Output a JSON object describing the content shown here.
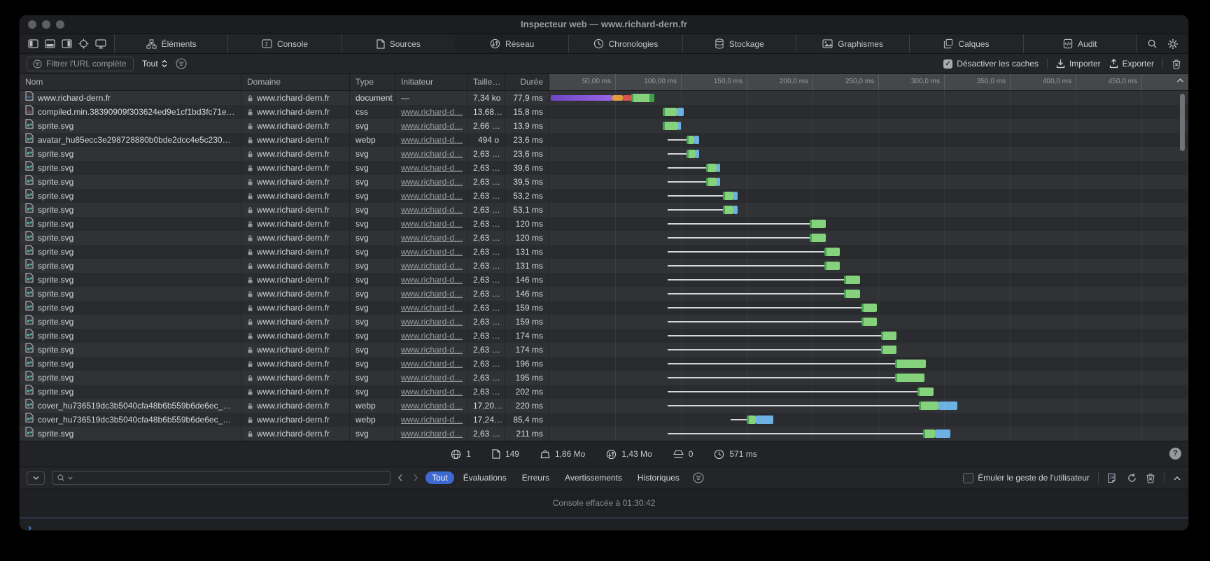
{
  "window": {
    "title": "Inspecteur web — www.richard-dern.fr"
  },
  "tabs": [
    {
      "id": "tab-elements",
      "icon": "elements-icon",
      "label": "Éléments",
      "active": false
    },
    {
      "id": "tab-console",
      "icon": "console-icon",
      "label": "Console",
      "active": false
    },
    {
      "id": "tab-sources",
      "icon": "sources-icon",
      "label": "Sources",
      "active": false
    },
    {
      "id": "tab-network",
      "icon": "network-icon",
      "label": "Réseau",
      "active": true
    },
    {
      "id": "tab-timelines",
      "icon": "timelines-icon",
      "label": "Chronologies",
      "active": false
    },
    {
      "id": "tab-storage",
      "icon": "storage-icon",
      "label": "Stockage",
      "active": false
    },
    {
      "id": "tab-graphics",
      "icon": "graphics-icon",
      "label": "Graphismes",
      "active": false
    },
    {
      "id": "tab-layers",
      "icon": "layers-icon",
      "label": "Calques",
      "active": false
    },
    {
      "id": "tab-audit",
      "icon": "audit-icon",
      "label": "Audit",
      "active": false
    }
  ],
  "network_toolbar": {
    "filter_placeholder": "Filtrer l'URL complète",
    "scope_label": "Tout",
    "disable_caches_label": "Désactiver les caches",
    "import_label": "Importer",
    "export_label": "Exporter"
  },
  "columns": {
    "nom": "Nom",
    "domaine": "Domaine",
    "type": "Type",
    "initiateur": "Initiateur",
    "taille": "Taille…",
    "duree": "Durée"
  },
  "timeline": {
    "ticks": [
      "50,00 ms",
      "100,00 ms",
      "150,0 ms",
      "200,0 ms",
      "250,0 ms",
      "300,0 ms",
      "350,0 ms",
      "400,0 ms",
      "450,0 ms"
    ],
    "tick_interval_ms": 50,
    "axis_unit": "ms"
  },
  "rows": [
    {
      "name": "www.richard-dern.fr",
      "icon": "html-file-icon",
      "domain": "www.richard-dern.fr",
      "type": "document",
      "initiator": "—",
      "initiator_link": false,
      "size": "7,34 ko",
      "duration": "77,9 ms",
      "wf": [
        {
          "c": "purple",
          "s": 1,
          "e": 48
        },
        {
          "c": "orange",
          "s": 48,
          "e": 56
        },
        {
          "c": "red",
          "s": 56,
          "e": 62
        },
        {
          "c": "green",
          "s": 62,
          "e": 80
        },
        {
          "c": "darkgreen",
          "s": 76,
          "e": 80
        }
      ]
    },
    {
      "name": "compiled.min.38390909f303624ed9e1cf1bd3fc71e…",
      "icon": "css-file-icon",
      "domain": "www.richard-dern.fr",
      "type": "css",
      "initiator": "www.richard-d…",
      "initiator_link": true,
      "size": "13,68…",
      "duration": "15,8 ms",
      "wf": [
        {
          "c": "green",
          "s": 86,
          "e": 97
        },
        {
          "c": "blue",
          "s": 97,
          "e": 102
        }
      ]
    },
    {
      "name": "sprite.svg",
      "icon": "svg-file-icon",
      "domain": "www.richard-dern.fr",
      "type": "svg",
      "initiator": "www.richard-d…",
      "initiator_link": true,
      "size": "2,66 …",
      "duration": "13,9 ms",
      "wf": [
        {
          "c": "green",
          "s": 86,
          "e": 98
        },
        {
          "c": "blue",
          "s": 98,
          "e": 100
        }
      ]
    },
    {
      "name": "avatar_hu85ecc3e298728880b0bde2dcc4e5c230_…",
      "icon": "image-file-icon",
      "domain": "www.richard-dern.fr",
      "type": "webp",
      "initiator": "www.richard-d…",
      "initiator_link": true,
      "size": "494 o",
      "duration": "23,6 ms",
      "wf": [
        {
          "c": "line",
          "s": 90,
          "e": 104
        },
        {
          "c": "green",
          "s": 104,
          "e": 110
        },
        {
          "c": "blue",
          "s": 110,
          "e": 114
        }
      ]
    },
    {
      "name": "sprite.svg",
      "icon": "svg-file-icon",
      "domain": "www.richard-dern.fr",
      "type": "svg",
      "initiator": "www.richard-d…",
      "initiator_link": true,
      "size": "2,63 …",
      "duration": "23,6 ms",
      "wf": [
        {
          "c": "line",
          "s": 90,
          "e": 104
        },
        {
          "c": "green",
          "s": 104,
          "e": 111
        },
        {
          "c": "blue",
          "s": 111,
          "e": 114
        }
      ]
    },
    {
      "name": "sprite.svg",
      "icon": "svg-file-icon",
      "domain": "www.richard-dern.fr",
      "type": "svg",
      "initiator": "www.richard-d…",
      "initiator_link": true,
      "size": "2,63 …",
      "duration": "39,6 ms",
      "wf": [
        {
          "c": "line",
          "s": 90,
          "e": 119
        },
        {
          "c": "green",
          "s": 119,
          "e": 127
        },
        {
          "c": "blue",
          "s": 127,
          "e": 130
        }
      ]
    },
    {
      "name": "sprite.svg",
      "icon": "svg-file-icon",
      "domain": "www.richard-dern.fr",
      "type": "svg",
      "initiator": "www.richard-d…",
      "initiator_link": true,
      "size": "2,63 …",
      "duration": "39,5 ms",
      "wf": [
        {
          "c": "line",
          "s": 90,
          "e": 119
        },
        {
          "c": "green",
          "s": 119,
          "e": 127
        },
        {
          "c": "blue",
          "s": 127,
          "e": 130
        }
      ]
    },
    {
      "name": "sprite.svg",
      "icon": "svg-file-icon",
      "domain": "www.richard-dern.fr",
      "type": "svg",
      "initiator": "www.richard-d…",
      "initiator_link": true,
      "size": "2,63 …",
      "duration": "53,2 ms",
      "wf": [
        {
          "c": "line",
          "s": 90,
          "e": 132
        },
        {
          "c": "green",
          "s": 132,
          "e": 140
        },
        {
          "c": "blue",
          "s": 140,
          "e": 143
        }
      ]
    },
    {
      "name": "sprite.svg",
      "icon": "svg-file-icon",
      "domain": "www.richard-dern.fr",
      "type": "svg",
      "initiator": "www.richard-d…",
      "initiator_link": true,
      "size": "2,63 …",
      "duration": "53,1 ms",
      "wf": [
        {
          "c": "line",
          "s": 90,
          "e": 132
        },
        {
          "c": "green",
          "s": 132,
          "e": 140
        },
        {
          "c": "blue",
          "s": 140,
          "e": 143
        }
      ]
    },
    {
      "name": "sprite.svg",
      "icon": "svg-file-icon",
      "domain": "www.richard-dern.fr",
      "type": "svg",
      "initiator": "www.richard-d…",
      "initiator_link": true,
      "size": "2,63 …",
      "duration": "120 ms",
      "wf": [
        {
          "c": "line",
          "s": 90,
          "e": 198
        },
        {
          "c": "green",
          "s": 198,
          "e": 210
        }
      ]
    },
    {
      "name": "sprite.svg",
      "icon": "svg-file-icon",
      "domain": "www.richard-dern.fr",
      "type": "svg",
      "initiator": "www.richard-d…",
      "initiator_link": true,
      "size": "2,63 …",
      "duration": "120 ms",
      "wf": [
        {
          "c": "line",
          "s": 90,
          "e": 198
        },
        {
          "c": "green",
          "s": 198,
          "e": 210
        }
      ]
    },
    {
      "name": "sprite.svg",
      "icon": "svg-file-icon",
      "domain": "www.richard-dern.fr",
      "type": "svg",
      "initiator": "www.richard-d…",
      "initiator_link": true,
      "size": "2,63 …",
      "duration": "131 ms",
      "wf": [
        {
          "c": "line",
          "s": 90,
          "e": 209
        },
        {
          "c": "green",
          "s": 209,
          "e": 221
        }
      ]
    },
    {
      "name": "sprite.svg",
      "icon": "svg-file-icon",
      "domain": "www.richard-dern.fr",
      "type": "svg",
      "initiator": "www.richard-d…",
      "initiator_link": true,
      "size": "2,63 …",
      "duration": "131 ms",
      "wf": [
        {
          "c": "line",
          "s": 90,
          "e": 209
        },
        {
          "c": "green",
          "s": 209,
          "e": 221
        }
      ]
    },
    {
      "name": "sprite.svg",
      "icon": "svg-file-icon",
      "domain": "www.richard-dern.fr",
      "type": "svg",
      "initiator": "www.richard-d…",
      "initiator_link": true,
      "size": "2,63 …",
      "duration": "146 ms",
      "wf": [
        {
          "c": "line",
          "s": 90,
          "e": 224
        },
        {
          "c": "green",
          "s": 224,
          "e": 236
        }
      ]
    },
    {
      "name": "sprite.svg",
      "icon": "svg-file-icon",
      "domain": "www.richard-dern.fr",
      "type": "svg",
      "initiator": "www.richard-d…",
      "initiator_link": true,
      "size": "2,63 …",
      "duration": "146 ms",
      "wf": [
        {
          "c": "line",
          "s": 90,
          "e": 224
        },
        {
          "c": "green",
          "s": 224,
          "e": 236
        }
      ]
    },
    {
      "name": "sprite.svg",
      "icon": "svg-file-icon",
      "domain": "www.richard-dern.fr",
      "type": "svg",
      "initiator": "www.richard-d…",
      "initiator_link": true,
      "size": "2,63 …",
      "duration": "159 ms",
      "wf": [
        {
          "c": "line",
          "s": 90,
          "e": 237
        },
        {
          "c": "green",
          "s": 237,
          "e": 249
        }
      ]
    },
    {
      "name": "sprite.svg",
      "icon": "svg-file-icon",
      "domain": "www.richard-dern.fr",
      "type": "svg",
      "initiator": "www.richard-d…",
      "initiator_link": true,
      "size": "2,63 …",
      "duration": "159 ms",
      "wf": [
        {
          "c": "line",
          "s": 90,
          "e": 237
        },
        {
          "c": "green",
          "s": 237,
          "e": 249
        }
      ]
    },
    {
      "name": "sprite.svg",
      "icon": "svg-file-icon",
      "domain": "www.richard-dern.fr",
      "type": "svg",
      "initiator": "www.richard-d…",
      "initiator_link": true,
      "size": "2,63 …",
      "duration": "174 ms",
      "wf": [
        {
          "c": "line",
          "s": 90,
          "e": 252
        },
        {
          "c": "green",
          "s": 252,
          "e": 264
        }
      ]
    },
    {
      "name": "sprite.svg",
      "icon": "svg-file-icon",
      "domain": "www.richard-dern.fr",
      "type": "svg",
      "initiator": "www.richard-d…",
      "initiator_link": true,
      "size": "2,63 …",
      "duration": "174 ms",
      "wf": [
        {
          "c": "line",
          "s": 90,
          "e": 252
        },
        {
          "c": "green",
          "s": 252,
          "e": 264
        }
      ]
    },
    {
      "name": "sprite.svg",
      "icon": "svg-file-icon",
      "domain": "www.richard-dern.fr",
      "type": "svg",
      "initiator": "www.richard-d…",
      "initiator_link": true,
      "size": "2,63 …",
      "duration": "196 ms",
      "wf": [
        {
          "c": "line",
          "s": 90,
          "e": 263
        },
        {
          "c": "green",
          "s": 263,
          "e": 286
        }
      ]
    },
    {
      "name": "sprite.svg",
      "icon": "svg-file-icon",
      "domain": "www.richard-dern.fr",
      "type": "svg",
      "initiator": "www.richard-d…",
      "initiator_link": true,
      "size": "2,63 …",
      "duration": "195 ms",
      "wf": [
        {
          "c": "line",
          "s": 90,
          "e": 263
        },
        {
          "c": "green",
          "s": 263,
          "e": 285
        }
      ]
    },
    {
      "name": "sprite.svg",
      "icon": "svg-file-icon",
      "domain": "www.richard-dern.fr",
      "type": "svg",
      "initiator": "www.richard-d…",
      "initiator_link": true,
      "size": "2,63 …",
      "duration": "202 ms",
      "wf": [
        {
          "c": "line",
          "s": 90,
          "e": 280
        },
        {
          "c": "green",
          "s": 280,
          "e": 292
        }
      ]
    },
    {
      "name": "cover_hu736519dc3b5040cfa48b6b559b6de6ec_1…",
      "icon": "image-file-icon",
      "domain": "www.richard-dern.fr",
      "type": "webp",
      "initiator": "www.richard-d…",
      "initiator_link": true,
      "size": "17,20…",
      "duration": "220 ms",
      "wf": [
        {
          "c": "line",
          "s": 90,
          "e": 281
        },
        {
          "c": "green",
          "s": 281,
          "e": 296
        },
        {
          "c": "blue",
          "s": 296,
          "e": 310
        }
      ]
    },
    {
      "name": "cover_hu736519dc3b5040cfa48b6b559b6de6ec_1…",
      "icon": "image-file-icon",
      "domain": "www.richard-dern.fr",
      "type": "webp",
      "initiator": "www.richard-d…",
      "initiator_link": true,
      "size": "17,24…",
      "duration": "85,4 ms",
      "wf": [
        {
          "c": "line",
          "s": 138,
          "e": 150
        },
        {
          "c": "green",
          "s": 150,
          "e": 157
        },
        {
          "c": "blue",
          "s": 157,
          "e": 170
        }
      ]
    },
    {
      "name": "sprite.svg",
      "icon": "svg-file-icon",
      "domain": "www.richard-dern.fr",
      "type": "svg",
      "initiator": "www.richard-d…",
      "initiator_link": true,
      "size": "2,63 …",
      "duration": "211 ms",
      "wf": [
        {
          "c": "line",
          "s": 90,
          "e": 284
        },
        {
          "c": "green",
          "s": 284,
          "e": 293
        },
        {
          "c": "blue",
          "s": 293,
          "e": 305
        }
      ]
    }
  ],
  "status_bar": {
    "items": [
      {
        "id": "domains-count",
        "icon": "globe-icon",
        "value": "1"
      },
      {
        "id": "resources-count",
        "icon": "document-icon",
        "value": "149"
      },
      {
        "id": "resources-size",
        "icon": "size-icon",
        "value": "1,86 Mo"
      },
      {
        "id": "transferred-size",
        "icon": "transfer-icon",
        "value": "1,43 Mo"
      },
      {
        "id": "memory-cache-count",
        "icon": "cache-icon",
        "value": "0"
      },
      {
        "id": "load-time",
        "icon": "clock-icon",
        "value": "571 ms"
      }
    ],
    "help_label": "?"
  },
  "console_toolbar": {
    "filters": [
      {
        "id": "filter-all",
        "label": "Tout",
        "active": true
      },
      {
        "id": "filter-evaluations",
        "label": "Évaluations",
        "active": false
      },
      {
        "id": "filter-errors",
        "label": "Erreurs",
        "active": false
      },
      {
        "id": "filter-warnings",
        "label": "Avertissements",
        "active": false
      },
      {
        "id": "filter-logs",
        "label": "Historiques",
        "active": false
      }
    ],
    "emulate_label": "Émuler le geste de l'utilisateur"
  },
  "console": {
    "cleared_message": "Console effacée à 01:30:42",
    "prompt": "›"
  },
  "colors": {
    "waterfall_green": "#86d17c",
    "waterfall_green_dark": "#44a34d",
    "waterfall_blue": "#6cb1e1",
    "waterfall_purple": "#8e5cd9",
    "waterfall_orange": "#e09c3f",
    "waterfall_red": "#d9534f",
    "active_pill_blue": "#3f69d2",
    "prompt_blue": "#4d8fe8"
  }
}
